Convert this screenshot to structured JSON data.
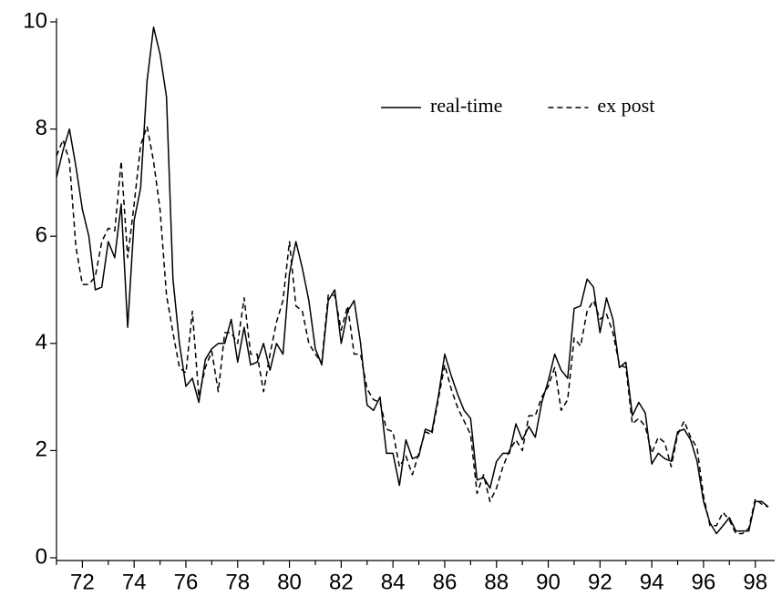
{
  "chart_data": {
    "type": "line",
    "x": [
      71.0,
      71.25,
      71.5,
      71.75,
      72.0,
      72.25,
      72.5,
      72.75,
      73.0,
      73.25,
      73.5,
      73.75,
      74.0,
      74.25,
      74.5,
      74.75,
      75.0,
      75.25,
      75.5,
      75.75,
      76.0,
      76.25,
      76.5,
      76.75,
      77.0,
      77.25,
      77.5,
      77.75,
      78.0,
      78.25,
      78.5,
      78.75,
      79.0,
      79.25,
      79.5,
      79.75,
      80.0,
      80.25,
      80.5,
      80.75,
      81.0,
      81.25,
      81.5,
      81.75,
      82.0,
      82.25,
      82.5,
      82.75,
      83.0,
      83.25,
      83.5,
      83.75,
      84.0,
      84.25,
      84.5,
      84.75,
      85.0,
      85.25,
      85.5,
      85.75,
      86.0,
      86.25,
      86.5,
      86.75,
      87.0,
      87.25,
      87.5,
      87.75,
      88.0,
      88.25,
      88.5,
      88.75,
      89.0,
      89.25,
      89.5,
      89.75,
      90.0,
      90.25,
      90.5,
      90.75,
      91.0,
      91.25,
      91.5,
      91.75,
      92.0,
      92.25,
      92.5,
      92.75,
      93.0,
      93.25,
      93.5,
      93.75,
      94.0,
      94.25,
      94.5,
      94.75,
      95.0,
      95.25,
      95.5,
      95.75,
      96.0,
      96.25,
      96.5,
      96.75,
      97.0,
      97.25,
      97.5,
      97.75,
      98.0,
      98.25,
      98.5
    ],
    "series": [
      {
        "name": "real-time",
        "color": "#000000",
        "dash": "solid",
        "values": [
          7.1,
          7.6,
          8.0,
          7.3,
          6.5,
          6.0,
          5.0,
          5.05,
          5.9,
          5.6,
          6.6,
          4.3,
          6.3,
          6.9,
          8.9,
          9.9,
          9.4,
          8.6,
          5.2,
          4.0,
          3.2,
          3.35,
          2.9,
          3.7,
          3.9,
          4.0,
          4.0,
          4.45,
          3.65,
          4.3,
          3.6,
          3.65,
          4.0,
          3.5,
          4.0,
          3.8,
          5.3,
          5.9,
          5.4,
          4.8,
          3.9,
          3.6,
          4.8,
          5.0,
          4.0,
          4.6,
          4.8,
          4.0,
          2.85,
          2.75,
          3.0,
          1.95,
          1.95,
          1.35,
          2.2,
          1.85,
          1.9,
          2.4,
          2.35,
          3.0,
          3.8,
          3.4,
          3.05,
          2.75,
          2.6,
          1.45,
          1.5,
          1.3,
          1.8,
          1.95,
          1.95,
          2.5,
          2.2,
          2.45,
          2.25,
          2.9,
          3.3,
          3.8,
          3.5,
          3.35,
          4.65,
          4.7,
          5.2,
          5.05,
          4.2,
          4.85,
          4.45,
          3.55,
          3.65,
          2.65,
          2.9,
          2.7,
          1.75,
          1.95,
          1.85,
          1.8,
          2.35,
          2.4,
          2.2,
          1.8,
          1.05,
          0.65,
          0.45,
          0.6,
          0.75,
          0.5,
          0.5,
          0.5,
          1.05,
          1.05,
          0.95
        ]
      },
      {
        "name": "ex post",
        "color": "#000000",
        "dash": "dashed",
        "values": [
          7.5,
          7.8,
          7.4,
          5.8,
          5.1,
          5.1,
          5.25,
          5.9,
          6.15,
          6.1,
          7.4,
          5.6,
          6.6,
          7.7,
          8.05,
          7.4,
          6.5,
          4.9,
          4.2,
          3.55,
          3.45,
          4.6,
          3.0,
          3.55,
          3.85,
          3.1,
          4.2,
          4.2,
          4.0,
          4.85,
          3.8,
          3.8,
          3.1,
          3.8,
          4.4,
          4.8,
          5.9,
          4.7,
          4.6,
          4.0,
          3.8,
          3.65,
          4.9,
          4.9,
          4.25,
          4.7,
          3.8,
          3.8,
          3.15,
          2.95,
          2.9,
          2.4,
          2.35,
          1.7,
          1.9,
          1.55,
          1.95,
          2.35,
          2.3,
          2.95,
          3.6,
          3.15,
          2.8,
          2.55,
          2.3,
          1.2,
          1.55,
          1.05,
          1.3,
          1.7,
          2.0,
          2.2,
          2.0,
          2.65,
          2.65,
          3.0,
          3.2,
          3.55,
          2.75,
          2.95,
          4.1,
          3.95,
          4.6,
          4.8,
          4.45,
          4.55,
          4.2,
          3.6,
          3.55,
          2.5,
          2.6,
          2.45,
          1.95,
          2.25,
          2.15,
          1.7,
          2.3,
          2.55,
          2.25,
          2.05,
          1.15,
          0.6,
          0.6,
          0.85,
          0.7,
          0.45,
          0.45,
          0.55,
          1.1,
          1.0,
          0.95
        ]
      }
    ],
    "xlim": [
      71.0,
      98.75
    ],
    "xticks": [
      72,
      74,
      76,
      78,
      80,
      82,
      84,
      86,
      88,
      90,
      92,
      94,
      96,
      98
    ],
    "xticks_minor": [
      71,
      73,
      75,
      77,
      79,
      81,
      83,
      85,
      87,
      89,
      91,
      93,
      95,
      97
    ],
    "ylim": [
      0,
      10
    ],
    "yticks": [
      0,
      2,
      4,
      6,
      8,
      10
    ],
    "grid": false,
    "legend": "top-right"
  }
}
